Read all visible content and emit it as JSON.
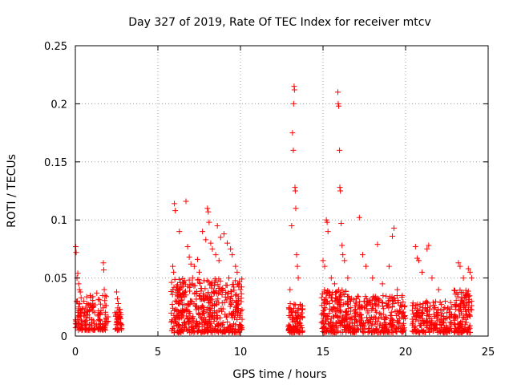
{
  "chart_data": {
    "type": "scatter",
    "title": "Day 327 of 2019, Rate Of TEC Index for receiver mtcv",
    "xlabel": "GPS time / hours",
    "ylabel": "ROTI / TECUs",
    "xlim": [
      0,
      25
    ],
    "ylim": [
      0,
      0.25
    ],
    "xticks": [
      0,
      5,
      10,
      15,
      20,
      25
    ],
    "xtick_labels": [
      "0",
      "5",
      "10",
      "15",
      "20",
      "25"
    ],
    "yticks": [
      0,
      0.05,
      0.1,
      0.15,
      0.2,
      0.25
    ],
    "ytick_labels": [
      "0",
      "0.05",
      "0.1",
      "0.15",
      "0.2",
      "0.25"
    ],
    "grid": true,
    "marker": "+",
    "color": "#ff0000",
    "series": [
      {
        "name": "ROTI",
        "points": [
          [
            0.02,
            0.077
          ],
          [
            0.05,
            0.072
          ],
          [
            0.1,
            0.05
          ],
          [
            0.15,
            0.054
          ],
          [
            0.2,
            0.045
          ],
          [
            0.25,
            0.04
          ],
          [
            0.3,
            0.038
          ],
          [
            0.12,
            0.03
          ],
          [
            0.2,
            0.025
          ],
          [
            0.35,
            0.033
          ],
          [
            0.5,
            0.03
          ],
          [
            0.7,
            0.028
          ],
          [
            0.9,
            0.035
          ],
          [
            1.1,
            0.025
          ],
          [
            1.3,
            0.037
          ],
          [
            1.5,
            0.02
          ],
          [
            1.7,
            0.063
          ],
          [
            1.72,
            0.057
          ],
          [
            1.75,
            0.04
          ],
          [
            1.8,
            0.035
          ],
          [
            2.5,
            0.038
          ],
          [
            2.55,
            0.032
          ],
          [
            2.6,
            0.028
          ],
          [
            2.7,
            0.023
          ],
          [
            2.45,
            0.018
          ],
          [
            5.9,
            0.06
          ],
          [
            5.95,
            0.055
          ],
          [
            6.0,
            0.114
          ],
          [
            6.05,
            0.108
          ],
          [
            6.1,
            0.04
          ],
          [
            6.2,
            0.035
          ],
          [
            6.3,
            0.09
          ],
          [
            6.5,
            0.045
          ],
          [
            6.7,
            0.116
          ],
          [
            6.8,
            0.077
          ],
          [
            6.9,
            0.068
          ],
          [
            7.0,
            0.062
          ],
          [
            7.2,
            0.06
          ],
          [
            7.4,
            0.066
          ],
          [
            7.5,
            0.055
          ],
          [
            7.7,
            0.09
          ],
          [
            7.9,
            0.083
          ],
          [
            8.0,
            0.11
          ],
          [
            8.05,
            0.107
          ],
          [
            8.1,
            0.098
          ],
          [
            8.2,
            0.08
          ],
          [
            8.3,
            0.075
          ],
          [
            8.5,
            0.07
          ],
          [
            8.6,
            0.095
          ],
          [
            8.8,
            0.085
          ],
          [
            9.0,
            0.088
          ],
          [
            9.2,
            0.08
          ],
          [
            9.4,
            0.075
          ],
          [
            9.5,
            0.07
          ],
          [
            9.7,
            0.06
          ],
          [
            9.8,
            0.055
          ],
          [
            9.9,
            0.045
          ],
          [
            10.0,
            0.04
          ],
          [
            7.1,
            0.05
          ],
          [
            8.7,
            0.065
          ],
          [
            13.0,
            0.04
          ],
          [
            13.1,
            0.095
          ],
          [
            13.15,
            0.175
          ],
          [
            13.2,
            0.16
          ],
          [
            13.22,
            0.2
          ],
          [
            13.25,
            0.215
          ],
          [
            13.27,
            0.212
          ],
          [
            13.3,
            0.128
          ],
          [
            13.32,
            0.125
          ],
          [
            13.35,
            0.11
          ],
          [
            13.4,
            0.07
          ],
          [
            13.45,
            0.06
          ],
          [
            13.5,
            0.05
          ],
          [
            15.0,
            0.065
          ],
          [
            15.1,
            0.06
          ],
          [
            15.2,
            0.1
          ],
          [
            15.25,
            0.098
          ],
          [
            15.3,
            0.09
          ],
          [
            15.5,
            0.05
          ],
          [
            15.7,
            0.045
          ],
          [
            15.9,
            0.21
          ],
          [
            15.92,
            0.2
          ],
          [
            15.95,
            0.198
          ],
          [
            16.0,
            0.16
          ],
          [
            16.02,
            0.128
          ],
          [
            16.05,
            0.125
          ],
          [
            16.1,
            0.097
          ],
          [
            16.15,
            0.078
          ],
          [
            16.2,
            0.07
          ],
          [
            16.3,
            0.065
          ],
          [
            16.5,
            0.05
          ],
          [
            17.2,
            0.102
          ],
          [
            17.4,
            0.07
          ],
          [
            17.6,
            0.06
          ],
          [
            18.0,
            0.05
          ],
          [
            18.3,
            0.079
          ],
          [
            18.6,
            0.045
          ],
          [
            19.0,
            0.06
          ],
          [
            19.2,
            0.086
          ],
          [
            19.3,
            0.093
          ],
          [
            19.5,
            0.04
          ],
          [
            19.8,
            0.035
          ],
          [
            20.6,
            0.077
          ],
          [
            20.7,
            0.067
          ],
          [
            20.8,
            0.065
          ],
          [
            21.0,
            0.055
          ],
          [
            21.3,
            0.075
          ],
          [
            21.4,
            0.078
          ],
          [
            21.6,
            0.05
          ],
          [
            22.0,
            0.04
          ],
          [
            22.4,
            0.03
          ],
          [
            22.8,
            0.025
          ],
          [
            23.2,
            0.063
          ],
          [
            23.3,
            0.06
          ],
          [
            23.5,
            0.05
          ],
          [
            23.8,
            0.058
          ],
          [
            23.9,
            0.055
          ],
          [
            24.0,
            0.05
          ]
        ],
        "clusters": [
          {
            "x": [
              0.0,
              2.0
            ],
            "y": [
              0.005,
              0.035
            ],
            "n": 160
          },
          {
            "x": [
              2.4,
              2.8
            ],
            "y": [
              0.005,
              0.025
            ],
            "n": 40
          },
          {
            "x": [
              5.8,
              10.1
            ],
            "y": [
              0.003,
              0.05
            ],
            "n": 520
          },
          {
            "x": [
              12.9,
              13.8
            ],
            "y": [
              0.003,
              0.028
            ],
            "n": 100
          },
          {
            "x": [
              14.9,
              16.6
            ],
            "y": [
              0.003,
              0.04
            ],
            "n": 200
          },
          {
            "x": [
              16.6,
              20.0
            ],
            "y": [
              0.003,
              0.035
            ],
            "n": 300
          },
          {
            "x": [
              20.4,
              22.8
            ],
            "y": [
              0.003,
              0.03
            ],
            "n": 200
          },
          {
            "x": [
              22.9,
              24.0
            ],
            "y": [
              0.003,
              0.04
            ],
            "n": 130
          }
        ]
      }
    ]
  }
}
